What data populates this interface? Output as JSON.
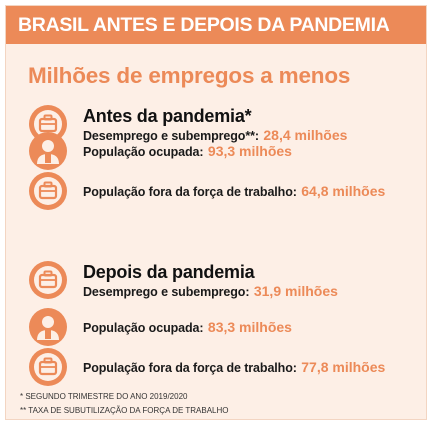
{
  "banner": {
    "title": "BRASIL ANTES E DEPOIS DA PANDEMIA"
  },
  "headline": "Milhões de empregos a menos",
  "colors": {
    "accent": "#ec8a58",
    "background": "#fdefe6"
  },
  "before": {
    "title": "Antes da pandemia*",
    "rows": [
      {
        "icon": "briefcase-icon",
        "label": "Desemprego e subemprego**:",
        "value": "28,4 milhões"
      },
      {
        "icon": "worker-icon",
        "label": "População ocupada:",
        "value": "93,3 milhões"
      },
      {
        "icon": "briefcase-icon",
        "label": "População fora da força de trabalho:",
        "value": "64,8 milhões"
      }
    ]
  },
  "after": {
    "title": "Depois da pandemia",
    "rows": [
      {
        "icon": "briefcase-icon",
        "label": "Desemprego e subemprego:",
        "value": "31,9 milhões"
      },
      {
        "icon": "worker-icon",
        "label": "População ocupada:",
        "value": "83,3 milhões"
      },
      {
        "icon": "briefcase-icon",
        "label": "População fora da força de trabalho:",
        "value": "77,8 milhões"
      }
    ]
  },
  "footnotes": [
    "* SEGUNDO TRIMESTRE DO ANO 2019/2020",
    "** TAXA DE SUBUTILIZAÇÃO DA FORÇA DE TRABALHO"
  ]
}
